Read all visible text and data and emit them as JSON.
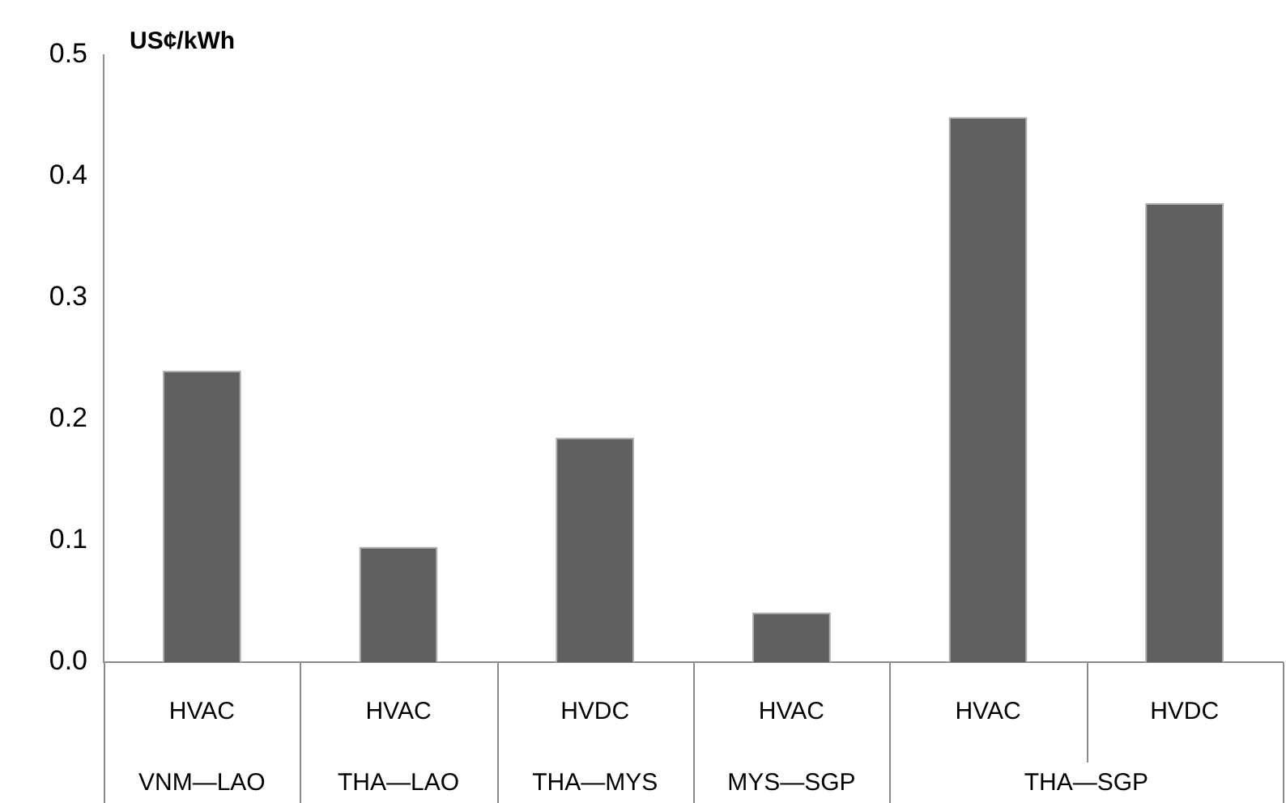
{
  "chart_data": {
    "type": "bar",
    "ylabel": "US¢/kWh",
    "categories": [
      "HVAC",
      "HVAC",
      "HVDC",
      "HVAC",
      "HVAC",
      "HVDC"
    ],
    "values": [
      0.24,
      0.095,
      0.185,
      0.041,
      0.449,
      0.378
    ],
    "color": "#606060",
    "ylim": [
      0,
      0.5
    ],
    "yticks": [
      {
        "value": 0,
        "label": "0.0"
      },
      0.1,
      0.2,
      0.3,
      0.4,
      0.5
    ],
    "grid": false,
    "annotations": [
      "VNM—LAO",
      "THA—LAO",
      "THA—MYS",
      "MYS—SGP",
      "THA—SGP"
    ]
  }
}
